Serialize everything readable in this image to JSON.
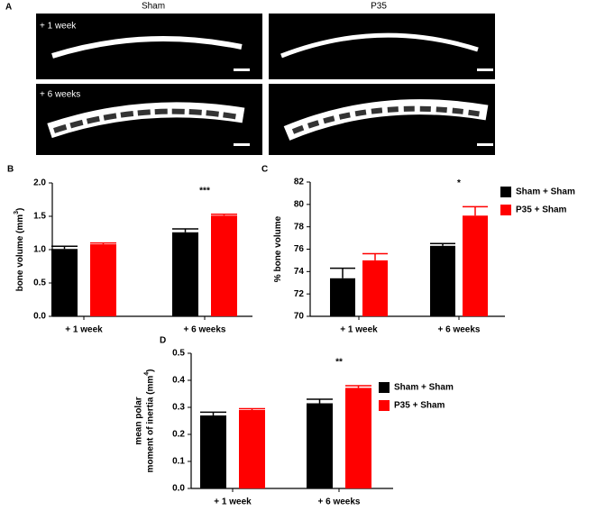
{
  "panel_a": {
    "label": "A",
    "columns": [
      "Sham",
      "P35"
    ],
    "rows": [
      "+ 1 week",
      "+ 6 weeks"
    ]
  },
  "chart_data": [
    {
      "type": "bar",
      "label": "B",
      "ylabel_lines": [
        [
          "bone volume (mm",
          "3",
          ")"
        ]
      ],
      "categories": [
        "+ 1 week",
        "+ 6 weeks"
      ],
      "series": [
        {
          "name": "Sham + Sham",
          "color": "#000000",
          "values": [
            1.01,
            1.26
          ],
          "errors": [
            0.04,
            0.05
          ]
        },
        {
          "name": "P35 + Sham",
          "color": "#ff0000",
          "values": [
            1.08,
            1.51
          ],
          "errors": [
            0.02,
            0.02
          ]
        }
      ],
      "ylim": [
        0,
        2
      ],
      "yticks": [
        {
          "value": 0,
          "label": "0.0"
        },
        {
          "value": 0.5,
          "label": "0.5"
        },
        {
          "value": 1,
          "label": "1.0"
        },
        {
          "value": 1.5,
          "label": "1.5"
        },
        {
          "value": 2,
          "label": "2.0"
        }
      ],
      "annotations": [
        {
          "text": "***",
          "x": "+ 6 weeks"
        }
      ],
      "legend": false
    },
    {
      "type": "bar",
      "label": "C",
      "ylabel_lines": [
        [
          "% bone volume"
        ]
      ],
      "categories": [
        "+ 1 week",
        "+ 6 weeks"
      ],
      "series": [
        {
          "name": "Sham + Sham",
          "color": "#000000",
          "values": [
            73.4,
            76.3
          ],
          "errors": [
            0.9,
            0.2
          ]
        },
        {
          "name": "P35 + Sham",
          "color": "#ff0000",
          "values": [
            75.0,
            79.0
          ],
          "errors": [
            0.6,
            0.8
          ]
        }
      ],
      "ylim": [
        70,
        82
      ],
      "yticks": [
        70,
        72,
        74,
        76,
        78,
        80,
        82
      ],
      "annotations": [
        {
          "text": "*",
          "x": "+ 6 weeks"
        }
      ],
      "legend": true
    },
    {
      "type": "bar",
      "label": "D",
      "ylabel_lines": [
        [
          "mean polar"
        ],
        [
          "moment of inertia (mm",
          "4",
          ")"
        ]
      ],
      "categories": [
        "+ 1 week",
        "+ 6 weeks"
      ],
      "series": [
        {
          "name": "Sham + Sham",
          "color": "#000000",
          "values": [
            0.27,
            0.315
          ],
          "errors": [
            0.012,
            0.015
          ]
        },
        {
          "name": "P35 + Sham",
          "color": "#ff0000",
          "values": [
            0.29,
            0.372
          ],
          "errors": [
            0.005,
            0.008
          ]
        }
      ],
      "ylim": [
        0,
        0.5
      ],
      "yticks": [
        {
          "value": 0,
          "label": "0.0"
        },
        {
          "value": 0.1,
          "label": "0.1"
        },
        {
          "value": 0.2,
          "label": "0.2"
        },
        {
          "value": 0.3,
          "label": "0.3"
        },
        {
          "value": 0.4,
          "label": "0.4"
        },
        {
          "value": 0.5,
          "label": "0.5"
        }
      ],
      "annotations": [
        {
          "text": "**",
          "x": "+ 6 weeks"
        }
      ],
      "legend": true
    }
  ]
}
